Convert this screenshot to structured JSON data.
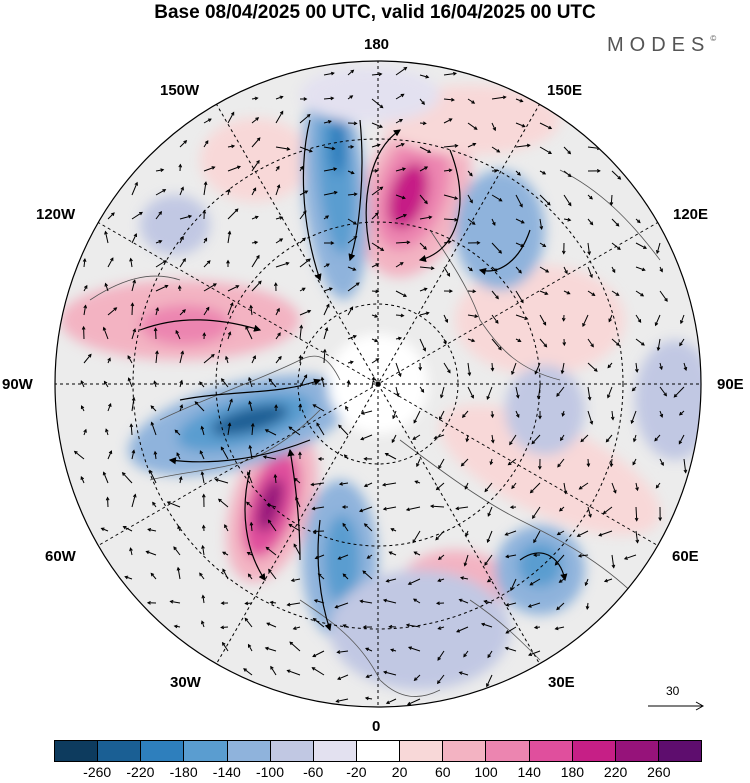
{
  "title": "Base 08/04/2025 00 UTC, valid 16/04/2025 00 UTC",
  "brand": "MODES",
  "brand_mark": "©",
  "longitude_labels": {
    "top": "180",
    "top_left": "150W",
    "top_right": "150E",
    "upper_left": "120W",
    "upper_right": "120E",
    "left": "90W",
    "right": "90E",
    "lower_left": "60W",
    "lower_right": "60E",
    "bottom_left": "30W",
    "bottom_right": "30E",
    "bottom": "0"
  },
  "reference_vector": {
    "label": "30"
  },
  "colorbar": {
    "colors": [
      "#0d3b5e",
      "#1a5f94",
      "#2e7fbd",
      "#5a9dd0",
      "#8fb3dc",
      "#c1c8e3",
      "#e3e1f0",
      "#ffffff",
      "#f8d8d8",
      "#f3b3c2",
      "#ec85b0",
      "#e04f9d",
      "#c61f86",
      "#96137a",
      "#5e0d6e"
    ],
    "ticks": [
      "-260",
      "-220",
      "-180",
      "-140",
      "-100",
      "-60",
      "-20",
      "20",
      "60",
      "100",
      "140",
      "180",
      "220",
      "260"
    ]
  },
  "icons": {
    "north_pole_marker": "pole-dot-icon",
    "reference_arrow": "arrow-right-icon"
  }
}
